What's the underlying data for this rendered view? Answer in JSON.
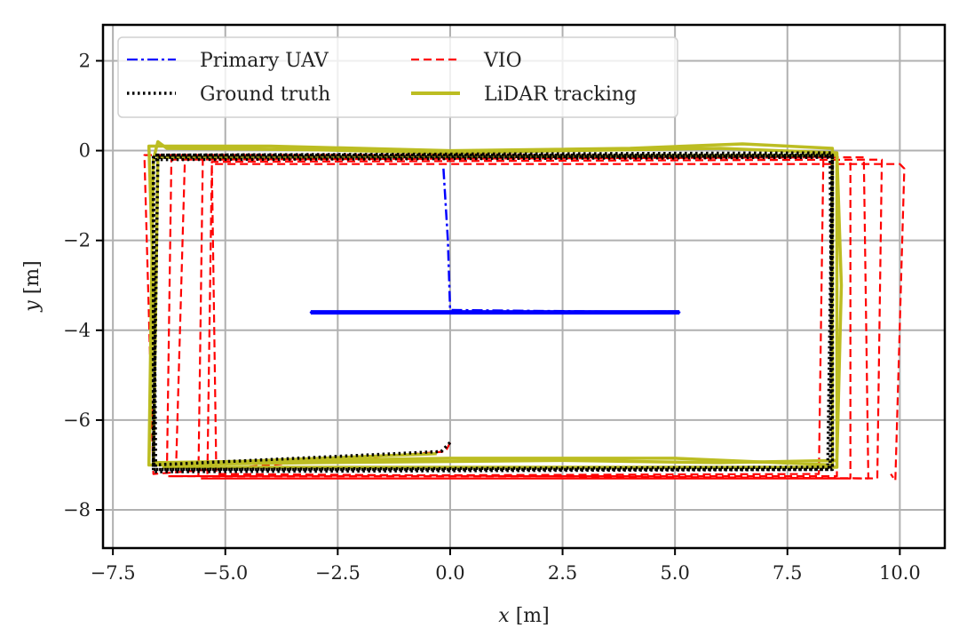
{
  "chart_data": {
    "type": "line",
    "title": "",
    "xlabel_var": "x",
    "xlabel_unit": "[m]",
    "ylabel_var": "y",
    "ylabel_unit": "[m]",
    "xlim": [
      -7.72,
      11.0
    ],
    "ylim": [
      -8.85,
      2.8
    ],
    "xticks": [
      -7.5,
      -5.0,
      -2.5,
      0.0,
      2.5,
      5.0,
      7.5,
      10.0
    ],
    "xtick_labels": [
      "−7.5",
      "−5.0",
      "−2.5",
      "0.0",
      "2.5",
      "5.0",
      "7.5",
      "10.0"
    ],
    "yticks": [
      2,
      0,
      -2,
      -4,
      -6,
      -8
    ],
    "ytick_labels": [
      "2",
      "0",
      "−2",
      "−4",
      "−6",
      "−8"
    ],
    "grid": true,
    "legend_position": "top-left",
    "series": [
      {
        "name": "VIO",
        "color": "#ff0000",
        "style": "dashed",
        "points": [
          [
            0,
            -6.5
          ],
          [
            -0.1,
            -6.7
          ],
          [
            -6.6,
            -7.2
          ],
          [
            -6.8,
            -0.1
          ],
          [
            8.3,
            -0.1
          ],
          [
            8.2,
            -7.2
          ],
          [
            -6.3,
            -7.25
          ],
          [
            -6.2,
            -0.2
          ],
          [
            8.6,
            -0.15
          ],
          [
            8.6,
            -7.25
          ],
          [
            -6.1,
            -7.25
          ],
          [
            -5.9,
            -0.2
          ],
          [
            8.9,
            -0.15
          ],
          [
            8.9,
            -7.3
          ],
          [
            -5.6,
            -7.3
          ],
          [
            -5.5,
            -0.2
          ],
          [
            9.2,
            -0.15
          ],
          [
            9.3,
            -7.3
          ],
          [
            -5.4,
            -7.3
          ],
          [
            -5.3,
            -0.25
          ],
          [
            9.6,
            -0.2
          ],
          [
            9.5,
            -7.3
          ],
          [
            -5.2,
            -7.2
          ],
          [
            -5.3,
            -0.3
          ],
          [
            10.0,
            -0.3
          ],
          [
            10.1,
            -0.4
          ],
          [
            9.9,
            -7.35
          ],
          [
            9.8,
            -7.2
          ]
        ]
      },
      {
        "name": "LiDAR tracking",
        "color": "#bcbd22",
        "style": "solid",
        "points": [
          [
            -0.3,
            -6.75
          ],
          [
            -6.7,
            -7.0
          ],
          [
            -6.6,
            -0.2
          ],
          [
            -6.5,
            0.2
          ],
          [
            -6.3,
            0.05
          ],
          [
            -3,
            0.02
          ],
          [
            0,
            -0.05
          ],
          [
            2.5,
            0.0
          ],
          [
            6,
            0.05
          ],
          [
            8.6,
            -0.05
          ],
          [
            8.7,
            -3
          ],
          [
            8.6,
            -6.9
          ],
          [
            6,
            -6.95
          ],
          [
            2.5,
            -6.9
          ],
          [
            -3,
            -6.95
          ],
          [
            -6.7,
            -7.0
          ],
          [
            -6.6,
            -3
          ],
          [
            -6.7,
            0.1
          ],
          [
            -4,
            0.1
          ],
          [
            0,
            0.0
          ],
          [
            4,
            0.05
          ],
          [
            6.5,
            0.15
          ],
          [
            8.5,
            0.05
          ],
          [
            8.5,
            -7.0
          ],
          [
            5,
            -6.85
          ],
          [
            0,
            -6.85
          ],
          [
            -6.6,
            -6.95
          ],
          [
            -6.5,
            -0.15
          ],
          [
            8.6,
            -0.1
          ],
          [
            8.6,
            -7.05
          ],
          [
            -6.4,
            -7.05
          ]
        ]
      },
      {
        "name": "Ground truth",
        "color": "#000000",
        "style": "dotted",
        "points": [
          [
            0,
            -6.5
          ],
          [
            -0.2,
            -6.7
          ],
          [
            -6.6,
            -7.0
          ],
          [
            -6.6,
            -0.1
          ],
          [
            8.5,
            -0.1
          ],
          [
            8.5,
            -7.1
          ],
          [
            -6.6,
            -7.1
          ],
          [
            -6.6,
            -0.15
          ],
          [
            8.45,
            -0.12
          ],
          [
            8.5,
            -7.05
          ],
          [
            -6.55,
            -7.1
          ],
          [
            -6.6,
            -0.2
          ],
          [
            8.5,
            -0.15
          ],
          [
            8.45,
            -7.1
          ],
          [
            -6.6,
            -7.15
          ],
          [
            -6.5,
            -0.1
          ],
          [
            8.5,
            -0.05
          ],
          [
            8.4,
            -7.0
          ]
        ]
      },
      {
        "name": "Primary UAV",
        "color": "#0000ff",
        "style": "dashdot",
        "points": [
          [
            -0.15,
            -0.4
          ],
          [
            -0.05,
            -2
          ],
          [
            0,
            -3.55
          ],
          [
            5.1,
            -3.6
          ],
          [
            -3.1,
            -3.6
          ],
          [
            5.05,
            -3.58
          ],
          [
            -3.05,
            -3.62
          ],
          [
            5.1,
            -3.6
          ]
        ]
      }
    ],
    "legend_order": [
      "Primary UAV",
      "Ground truth",
      "VIO",
      "LiDAR tracking"
    ]
  }
}
